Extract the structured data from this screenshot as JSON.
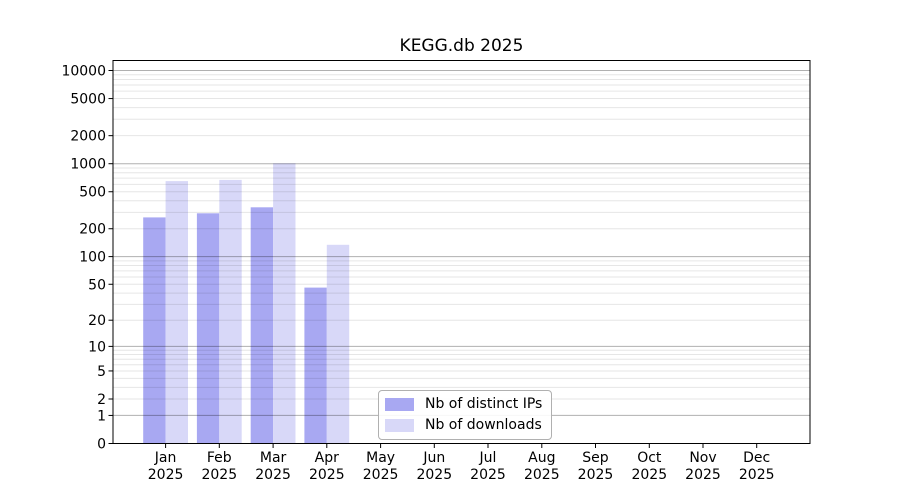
{
  "chart_data": {
    "type": "bar",
    "title": "KEGG.db 2025",
    "y_scale": "log10(value+1)",
    "ylim": [
      0,
      13000
    ],
    "y_ticks": [
      0,
      1,
      2,
      5,
      10,
      20,
      50,
      100,
      200,
      500,
      1000,
      2000,
      5000,
      10000
    ],
    "months": [
      {
        "month": "Jan",
        "year": "2025"
      },
      {
        "month": "Feb",
        "year": "2025"
      },
      {
        "month": "Mar",
        "year": "2025"
      },
      {
        "month": "Apr",
        "year": "2025"
      },
      {
        "month": "May",
        "year": "2025"
      },
      {
        "month": "Jun",
        "year": "2025"
      },
      {
        "month": "Jul",
        "year": "2025"
      },
      {
        "month": "Aug",
        "year": "2025"
      },
      {
        "month": "Sep",
        "year": "2025"
      },
      {
        "month": "Oct",
        "year": "2025"
      },
      {
        "month": "Nov",
        "year": "2025"
      },
      {
        "month": "Dec",
        "year": "2025"
      }
    ],
    "series": [
      {
        "name": "Nb of distinct IPs",
        "color": "#a8a8f2",
        "values": [
          265,
          293,
          340,
          46,
          null,
          null,
          null,
          null,
          null,
          null,
          null,
          null
        ]
      },
      {
        "name": "Nb of downloads",
        "color": "#d8d8f8",
        "values": [
          650,
          670,
          1010,
          134,
          null,
          null,
          null,
          null,
          null,
          null,
          null,
          null
        ]
      }
    ],
    "grid": {
      "major_color": "#b0b0b0",
      "minor_color": "#e6e6e6",
      "major_values": [
        1,
        10,
        100,
        1000,
        10000
      ]
    },
    "legend": {
      "position": "inside-bottom-center"
    },
    "axis_color": "#000000"
  }
}
